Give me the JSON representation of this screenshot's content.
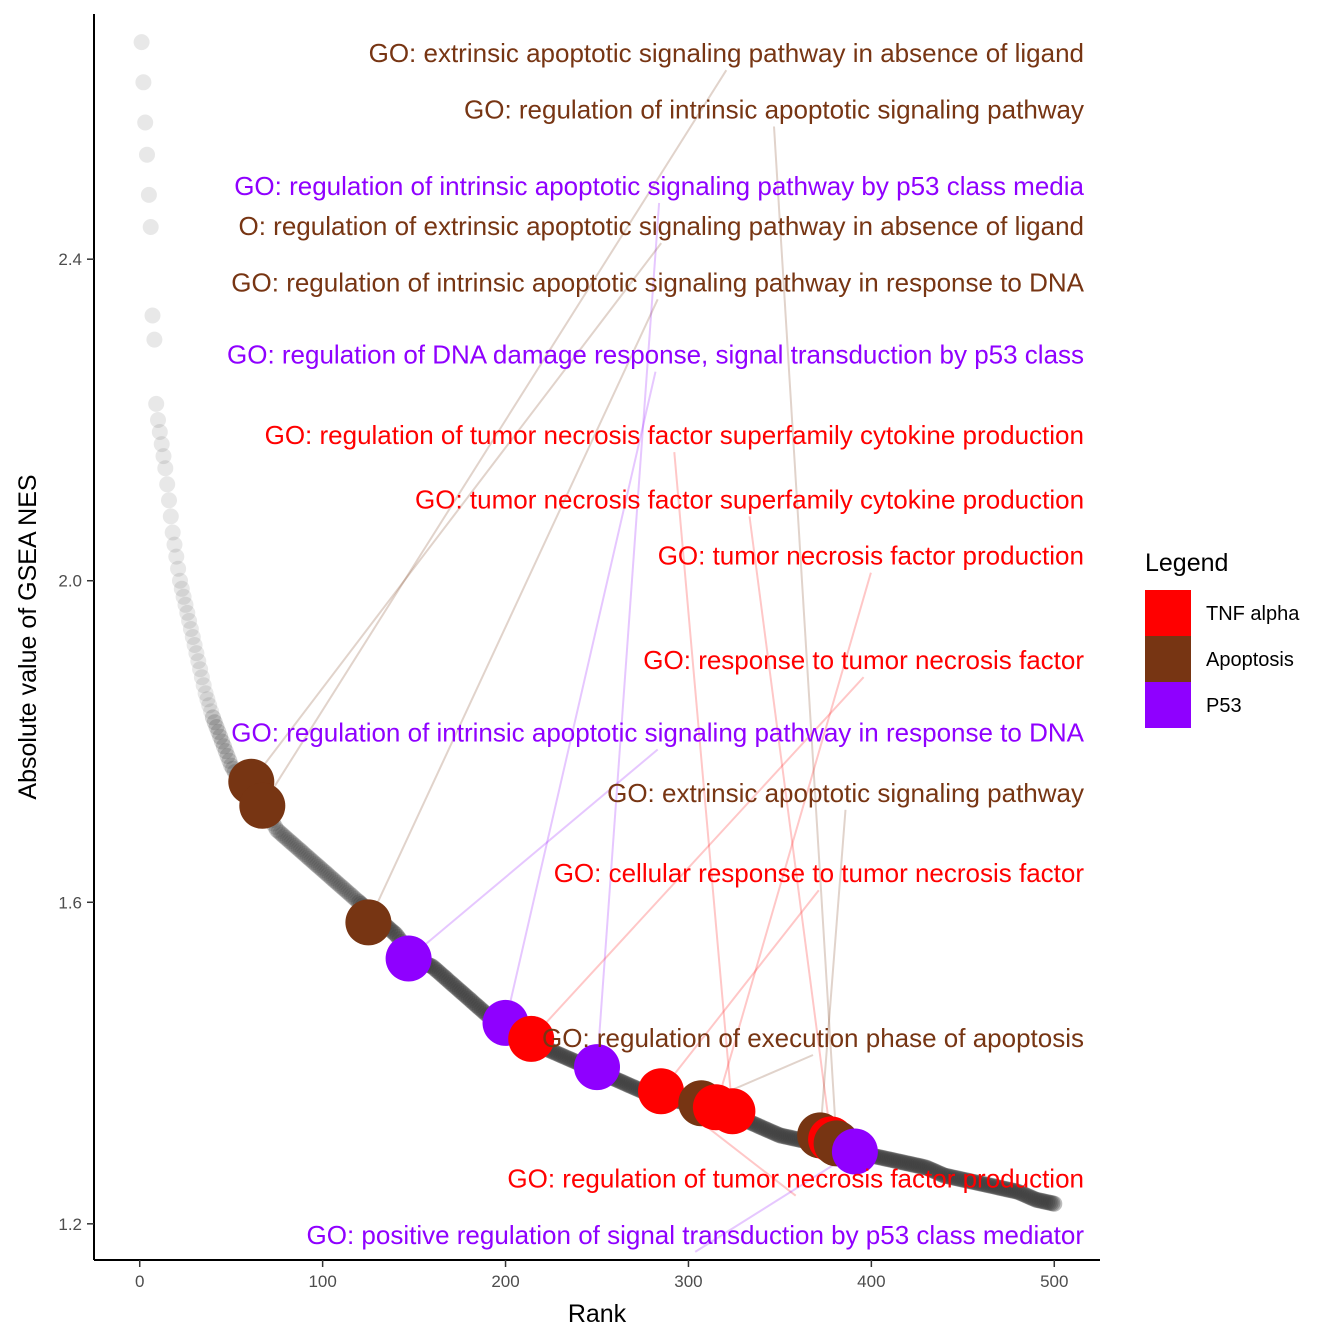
{
  "chart_data": {
    "type": "scatter",
    "xlabel": "Rank",
    "ylabel": "Absolute value of GSEA NES",
    "xlim": [
      -25,
      525
    ],
    "ylim": [
      1.155,
      2.705
    ],
    "xticks": [
      0,
      100,
      200,
      300,
      400,
      500
    ],
    "yticks": [
      1.2,
      1.6,
      2.0,
      2.4
    ],
    "xtick_labels": [
      "0",
      "100",
      "200",
      "300",
      "400",
      "500"
    ],
    "ytick_labels": [
      "1.2",
      "1.6",
      "2.0",
      "2.4"
    ],
    "grid": false,
    "legend": {
      "title": "Legend",
      "placement": "right",
      "entries": [
        {
          "name": "TNF alpha",
          "color": "#ff0000"
        },
        {
          "name": "Apoptosis",
          "color": "#773513"
        },
        {
          "name": "P53",
          "color": "#8f00ff"
        }
      ]
    },
    "background_points_color": "#404040",
    "background_curve": [
      [
        1,
        2.67
      ],
      [
        2,
        2.62
      ],
      [
        3,
        2.57
      ],
      [
        4,
        2.53
      ],
      [
        5,
        2.48
      ],
      [
        6,
        2.44
      ],
      [
        7,
        2.33
      ],
      [
        8,
        2.3
      ],
      [
        9,
        2.22
      ],
      [
        10,
        2.2
      ],
      [
        12,
        2.17
      ],
      [
        14,
        2.14
      ],
      [
        16,
        2.1
      ],
      [
        18,
        2.06
      ],
      [
        20,
        2.03
      ],
      [
        22,
        2.0
      ],
      [
        24,
        1.98
      ],
      [
        26,
        1.96
      ],
      [
        28,
        1.94
      ],
      [
        30,
        1.92
      ],
      [
        33,
        1.89
      ],
      [
        36,
        1.86
      ],
      [
        40,
        1.83
      ],
      [
        45,
        1.8
      ],
      [
        50,
        1.77
      ],
      [
        55,
        1.75
      ],
      [
        60,
        1.73
      ],
      [
        65,
        1.72
      ],
      [
        70,
        1.71
      ],
      [
        75,
        1.69
      ],
      [
        80,
        1.68
      ],
      [
        85,
        1.67
      ],
      [
        90,
        1.66
      ],
      [
        95,
        1.65
      ],
      [
        100,
        1.64
      ],
      [
        110,
        1.62
      ],
      [
        120,
        1.6
      ],
      [
        130,
        1.58
      ],
      [
        140,
        1.56
      ],
      [
        150,
        1.53
      ],
      [
        160,
        1.52
      ],
      [
        170,
        1.5
      ],
      [
        180,
        1.48
      ],
      [
        190,
        1.46
      ],
      [
        200,
        1.45
      ],
      [
        210,
        1.43
      ],
      [
        220,
        1.42
      ],
      [
        230,
        1.41
      ],
      [
        240,
        1.4
      ],
      [
        250,
        1.39
      ],
      [
        260,
        1.38
      ],
      [
        270,
        1.37
      ],
      [
        280,
        1.36
      ],
      [
        290,
        1.355
      ],
      [
        300,
        1.35
      ],
      [
        310,
        1.345
      ],
      [
        320,
        1.34
      ],
      [
        330,
        1.33
      ],
      [
        340,
        1.32
      ],
      [
        350,
        1.31
      ],
      [
        360,
        1.305
      ],
      [
        370,
        1.3
      ],
      [
        380,
        1.295
      ],
      [
        390,
        1.29
      ],
      [
        400,
        1.285
      ],
      [
        410,
        1.28
      ],
      [
        420,
        1.275
      ],
      [
        430,
        1.27
      ],
      [
        440,
        1.26
      ],
      [
        450,
        1.255
      ],
      [
        460,
        1.25
      ],
      [
        470,
        1.245
      ],
      [
        480,
        1.24
      ],
      [
        490,
        1.23
      ],
      [
        500,
        1.225
      ]
    ],
    "highlighted": [
      {
        "rank": 61,
        "nes": 1.75,
        "category": "Apoptosis"
      },
      {
        "rank": 67,
        "nes": 1.72,
        "category": "Apoptosis"
      },
      {
        "rank": 125,
        "nes": 1.575,
        "category": "Apoptosis"
      },
      {
        "rank": 147,
        "nes": 1.53,
        "category": "P53"
      },
      {
        "rank": 200,
        "nes": 1.45,
        "category": "P53"
      },
      {
        "rank": 214,
        "nes": 1.43,
        "category": "TNF alpha"
      },
      {
        "rank": 250,
        "nes": 1.395,
        "category": "P53"
      },
      {
        "rank": 285,
        "nes": 1.365,
        "category": "TNF alpha"
      },
      {
        "rank": 307,
        "nes": 1.35,
        "category": "Apoptosis"
      },
      {
        "rank": 315,
        "nes": 1.345,
        "category": "TNF alpha"
      },
      {
        "rank": 324,
        "nes": 1.34,
        "category": "TNF alpha"
      },
      {
        "rank": 372,
        "nes": 1.31,
        "category": "Apoptosis"
      },
      {
        "rank": 378,
        "nes": 1.305,
        "category": "TNF alpha"
      },
      {
        "rank": 381,
        "nes": 1.3,
        "category": "Apoptosis"
      },
      {
        "rank": 391,
        "nes": 1.29,
        "category": "P53"
      }
    ],
    "annotations": [
      {
        "text": "GO: extrinsic apoptotic signaling pathway in absence of ligand",
        "category": "Apoptosis",
        "label_nes": 2.645,
        "point": 1
      },
      {
        "text": "GO: regulation of intrinsic apoptotic signaling pathway",
        "category": "Apoptosis",
        "label_nes": 2.575,
        "point": 13
      },
      {
        "text": "GO: regulation of intrinsic apoptotic signaling pathway by p53 class media",
        "category": "P53",
        "label_nes": 2.48,
        "point": 6
      },
      {
        "text": "O: regulation of extrinsic apoptotic signaling pathway in absence of ligand",
        "category": "Apoptosis",
        "label_nes": 2.43,
        "point": 0
      },
      {
        "text": "GO: regulation of intrinsic apoptotic signaling pathway in response to DNA",
        "category": "Apoptosis",
        "label_nes": 2.36,
        "point": 2
      },
      {
        "text": "GO: regulation of DNA damage response, signal transduction by p53 class",
        "category": "P53",
        "label_nes": 2.27,
        "point": 4
      },
      {
        "text": "GO: regulation of tumor necrosis factor superfamily cytokine production",
        "category": "TNF alpha",
        "label_nes": 2.17,
        "point": 10
      },
      {
        "text": "GO: tumor necrosis factor superfamily cytokine production",
        "category": "TNF alpha",
        "label_nes": 2.09,
        "point": 12
      },
      {
        "text": "GO: tumor necrosis factor production",
        "category": "TNF alpha",
        "label_nes": 2.02,
        "point": 9
      },
      {
        "text": "GO: response to tumor necrosis factor",
        "category": "TNF alpha",
        "label_nes": 1.89,
        "point": 5
      },
      {
        "text": "GO: regulation of intrinsic apoptotic signaling pathway in response to DNA",
        "category": "P53",
        "label_nes": 1.8,
        "point": 3
      },
      {
        "text": "GO: extrinsic apoptotic signaling pathway",
        "category": "Apoptosis",
        "label_nes": 1.725,
        "point": 11
      },
      {
        "text": "GO: cellular response to tumor necrosis factor",
        "category": "TNF alpha",
        "label_nes": 1.625,
        "point": 7
      },
      {
        "text": "GO: regulation of execution phase of apoptosis",
        "category": "Apoptosis",
        "label_nes": 1.42,
        "point": 8
      },
      {
        "text": "GO: regulation of tumor necrosis factor production",
        "category": "TNF alpha",
        "label_nes": 1.245,
        "point": 7
      },
      {
        "text": "GO: positive regulation of signal transduction by p53 class mediator",
        "category": "P53",
        "label_nes": 1.175,
        "point": 14
      }
    ]
  }
}
